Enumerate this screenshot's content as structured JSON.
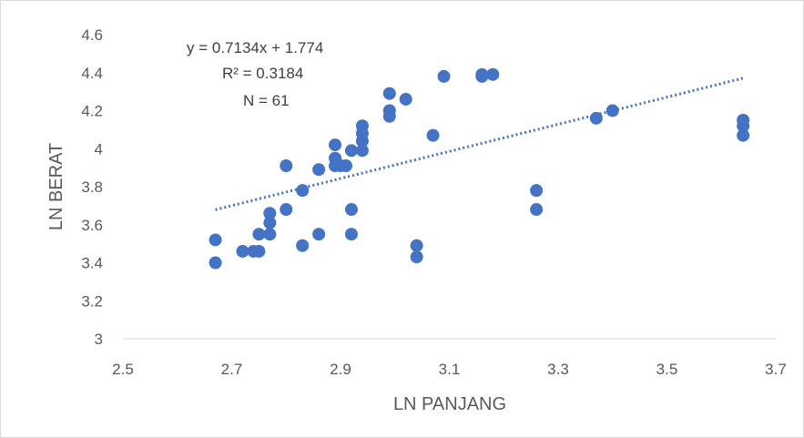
{
  "chart_data": {
    "type": "scatter",
    "title": "",
    "xlabel": "LN PANJANG",
    "ylabel": "LN BERAT",
    "xlim": [
      2.5,
      3.7
    ],
    "ylim": [
      3,
      4.6
    ],
    "xticks": [
      "2.5",
      "2.7",
      "2.9",
      "3.1",
      "3.3",
      "3.5",
      "3.7"
    ],
    "yticks": [
      "3",
      "3.2",
      "3.4",
      "3.6",
      "3.8",
      "4",
      "4.2",
      "4.4",
      "4.6"
    ],
    "grid": false,
    "legend": "none",
    "marker_color": "#4472c4",
    "annotations": [
      "y = 0.7134x + 1.774",
      "R² = 0.3184",
      "N = 61"
    ],
    "trendline": {
      "type": "linear",
      "slope": 0.7134,
      "intercept": 1.774,
      "x_range": [
        2.67,
        3.64
      ],
      "style": "dotted",
      "color": "#4472c4"
    },
    "series": [
      {
        "points": [
          [
            2.67,
            3.52
          ],
          [
            2.67,
            3.4
          ],
          [
            2.72,
            3.46
          ],
          [
            2.74,
            3.46
          ],
          [
            2.75,
            3.46
          ],
          [
            2.75,
            3.55
          ],
          [
            2.77,
            3.55
          ],
          [
            2.77,
            3.61
          ],
          [
            2.77,
            3.66
          ],
          [
            2.8,
            3.68
          ],
          [
            2.8,
            3.91
          ],
          [
            2.83,
            3.78
          ],
          [
            2.83,
            3.49
          ],
          [
            2.86,
            3.55
          ],
          [
            2.86,
            3.89
          ],
          [
            2.89,
            3.91
          ],
          [
            2.89,
            3.95
          ],
          [
            2.89,
            4.02
          ],
          [
            2.9,
            3.91
          ],
          [
            2.91,
            3.91
          ],
          [
            2.92,
            3.99
          ],
          [
            2.92,
            3.68
          ],
          [
            2.92,
            3.55
          ],
          [
            2.94,
            3.99
          ],
          [
            2.94,
            4.04
          ],
          [
            2.94,
            4.08
          ],
          [
            2.94,
            4.12
          ],
          [
            2.99,
            4.17
          ],
          [
            2.99,
            4.2
          ],
          [
            2.99,
            4.29
          ],
          [
            3.02,
            4.26
          ],
          [
            3.04,
            3.49
          ],
          [
            3.04,
            3.43
          ],
          [
            3.07,
            4.07
          ],
          [
            3.09,
            4.38
          ],
          [
            3.16,
            4.38
          ],
          [
            3.16,
            4.39
          ],
          [
            3.18,
            4.39
          ],
          [
            3.26,
            3.78
          ],
          [
            3.26,
            3.68
          ],
          [
            3.37,
            4.16
          ],
          [
            3.4,
            4.2
          ],
          [
            3.64,
            4.15
          ],
          [
            3.64,
            4.12
          ],
          [
            3.64,
            4.07
          ]
        ]
      }
    ]
  }
}
